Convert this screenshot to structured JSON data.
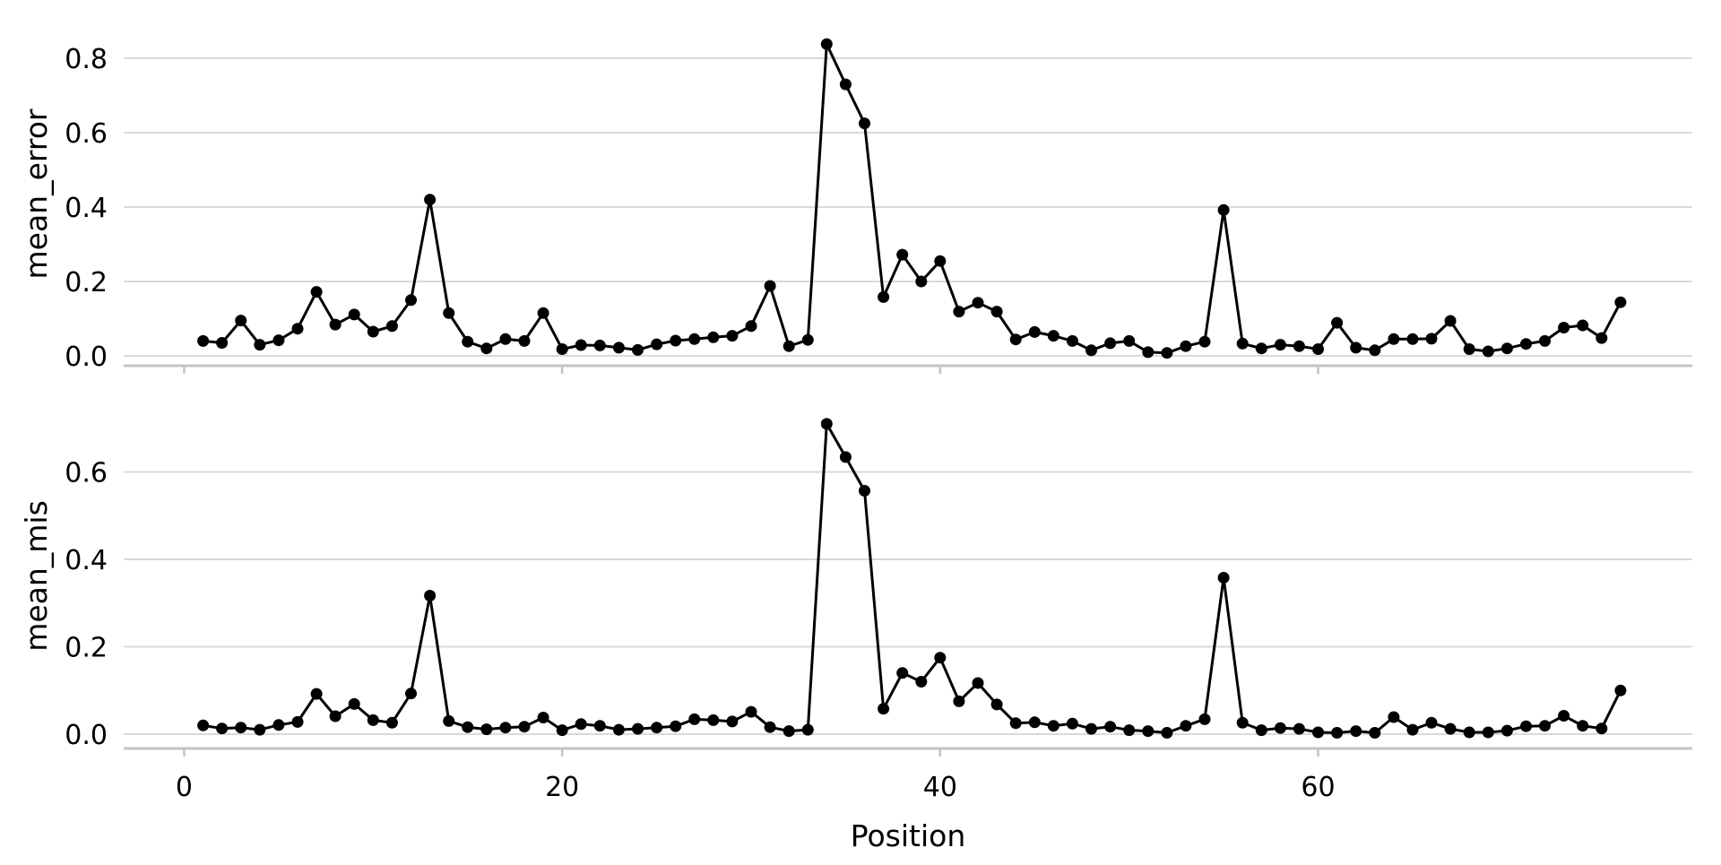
{
  "chart_data": {
    "type": "line",
    "title": "",
    "xlabel": "Position",
    "x_ticks": [
      0,
      20,
      40,
      60
    ],
    "xlim": [
      -3.2,
      79.8
    ],
    "grid": "horizontal-major-only",
    "legend": "none",
    "marker": "filled-circle",
    "x": [
      1,
      2,
      3,
      4,
      5,
      6,
      7,
      8,
      9,
      10,
      11,
      12,
      13,
      14,
      15,
      16,
      17,
      18,
      19,
      20,
      21,
      22,
      23,
      24,
      25,
      26,
      27,
      28,
      29,
      30,
      31,
      32,
      33,
      34,
      35,
      36,
      37,
      38,
      39,
      40,
      41,
      42,
      43,
      44,
      45,
      46,
      47,
      48,
      49,
      50,
      51,
      52,
      53,
      54,
      55,
      56,
      57,
      58,
      59,
      60,
      61,
      62,
      63,
      64,
      65,
      66,
      67,
      68,
      69,
      70,
      71,
      72,
      73,
      74,
      75,
      76
    ],
    "panels": [
      {
        "ylabel": "mean_error",
        "y_ticks": [
          0.0,
          0.2,
          0.4,
          0.6,
          0.8
        ],
        "ylim": [
          -0.031,
          0.895
        ],
        "values": [
          0.04,
          0.035,
          0.095,
          0.03,
          0.042,
          0.073,
          0.172,
          0.084,
          0.111,
          0.065,
          0.08,
          0.15,
          0.42,
          0.115,
          0.038,
          0.02,
          0.045,
          0.04,
          0.115,
          0.018,
          0.029,
          0.028,
          0.022,
          0.016,
          0.031,
          0.041,
          0.045,
          0.05,
          0.054,
          0.08,
          0.188,
          0.026,
          0.043,
          0.838,
          0.73,
          0.625,
          0.158,
          0.272,
          0.2,
          0.255,
          0.119,
          0.143,
          0.119,
          0.044,
          0.064,
          0.054,
          0.04,
          0.015,
          0.034,
          0.04,
          0.01,
          0.008,
          0.026,
          0.038,
          0.392,
          0.033,
          0.02,
          0.03,
          0.026,
          0.018,
          0.089,
          0.022,
          0.015,
          0.045,
          0.045,
          0.046,
          0.094,
          0.018,
          0.012,
          0.02,
          0.032,
          0.04,
          0.076,
          0.082,
          0.048,
          0.144
        ]
      },
      {
        "ylabel": "mean_mis",
        "y_ticks": [
          0.0,
          0.2,
          0.4,
          0.6
        ],
        "ylim": [
          -0.033,
          0.755
        ],
        "values": [
          0.02,
          0.013,
          0.015,
          0.01,
          0.021,
          0.028,
          0.092,
          0.041,
          0.069,
          0.032,
          0.026,
          0.093,
          0.317,
          0.03,
          0.016,
          0.011,
          0.015,
          0.017,
          0.038,
          0.009,
          0.023,
          0.019,
          0.01,
          0.012,
          0.015,
          0.018,
          0.034,
          0.032,
          0.029,
          0.051,
          0.016,
          0.007,
          0.01,
          0.71,
          0.634,
          0.557,
          0.058,
          0.14,
          0.12,
          0.175,
          0.075,
          0.117,
          0.068,
          0.025,
          0.027,
          0.019,
          0.024,
          0.012,
          0.017,
          0.009,
          0.007,
          0.003,
          0.019,
          0.034,
          0.358,
          0.026,
          0.009,
          0.014,
          0.012,
          0.004,
          0.003,
          0.007,
          0.003,
          0.039,
          0.01,
          0.026,
          0.012,
          0.004,
          0.004,
          0.008,
          0.018,
          0.019,
          0.042,
          0.019,
          0.013,
          0.1
        ]
      }
    ],
    "style": {
      "background": "#ffffff",
      "line_color": "#000000",
      "marker_color": "#000000",
      "gridline_color": "#d9d9d9",
      "axisline_color": "#c4c4c4",
      "text_color": "#000000"
    }
  }
}
